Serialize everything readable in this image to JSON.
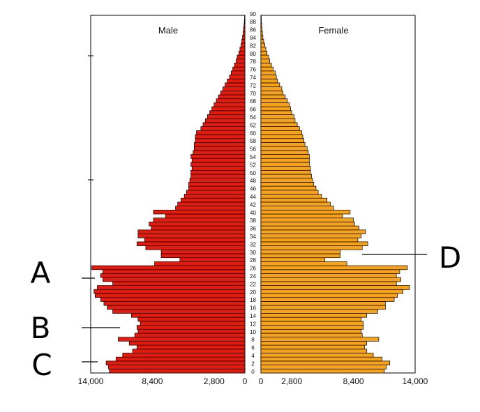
{
  "chart_data": {
    "type": "bar",
    "title": "",
    "headers": {
      "male": "Male",
      "female": "Female"
    },
    "age_tick_labels": [
      "0",
      "2",
      "4",
      "6",
      "8",
      "10",
      "12",
      "14",
      "16",
      "18",
      "20",
      "22",
      "24",
      "26",
      "28",
      "30",
      "32",
      "34",
      "36",
      "38",
      "40",
      "42",
      "44",
      "46",
      "48",
      "50",
      "52",
      "54",
      "56",
      "58",
      "60",
      "62",
      "64",
      "66",
      "68",
      "70",
      "72",
      "74",
      "76",
      "78",
      "80",
      "82",
      "84",
      "86",
      "88",
      "90"
    ],
    "male_axis_labels": [
      "14,000",
      "8,400",
      "2,800",
      "0"
    ],
    "female_axis_labels": [
      "0",
      "2,800",
      "8,400",
      "14,000"
    ],
    "axis_max": 14000,
    "ages": [
      0,
      1,
      2,
      3,
      4,
      5,
      6,
      7,
      8,
      9,
      10,
      11,
      12,
      13,
      14,
      15,
      16,
      17,
      18,
      19,
      20,
      21,
      22,
      23,
      24,
      25,
      26,
      27,
      28,
      29,
      30,
      31,
      32,
      33,
      34,
      35,
      36,
      37,
      38,
      39,
      40,
      41,
      42,
      43,
      44,
      45,
      46,
      47,
      48,
      49,
      50,
      51,
      52,
      53,
      54,
      55,
      56,
      57,
      58,
      59,
      60,
      61,
      62,
      63,
      64,
      65,
      66,
      67,
      68,
      69,
      70,
      71,
      72,
      73,
      74,
      75,
      76,
      77,
      78,
      79,
      80,
      81,
      82,
      83,
      84,
      85,
      86,
      87,
      88,
      89
    ],
    "series": [
      {
        "name": "Male",
        "color": "#e31a0e",
        "values": [
          12300,
          12400,
          12600,
          11700,
          11100,
          10200,
          9800,
          10500,
          11500,
          10000,
          9700,
          9800,
          9500,
          9700,
          10300,
          12000,
          12500,
          12800,
          13100,
          13600,
          13700,
          13400,
          12000,
          12900,
          13100,
          12900,
          13900,
          8200,
          5900,
          7600,
          7600,
          9000,
          9800,
          9100,
          9700,
          9700,
          8500,
          8700,
          8300,
          7200,
          8300,
          6300,
          6100,
          5800,
          5500,
          5300,
          5100,
          5100,
          5000,
          4900,
          4900,
          4800,
          4900,
          4800,
          4900,
          4700,
          4600,
          4600,
          4500,
          4500,
          4400,
          4000,
          3800,
          3600,
          3400,
          3200,
          3000,
          2800,
          2600,
          2400,
          2200,
          2000,
          1800,
          1600,
          1400,
          1250,
          1100,
          950,
          800,
          700,
          550,
          450,
          350,
          280,
          220,
          160,
          120,
          80,
          50,
          30
        ]
      },
      {
        "name": "Female",
        "color": "#f7a21b",
        "values": [
          11200,
          11400,
          11700,
          11000,
          10200,
          9600,
          9400,
          9600,
          10700,
          9200,
          9100,
          9300,
          9300,
          9100,
          9600,
          10600,
          11300,
          11300,
          12100,
          12400,
          12900,
          13500,
          12300,
          12700,
          12300,
          12600,
          13300,
          7800,
          5800,
          7200,
          7200,
          9200,
          9700,
          8800,
          9100,
          9500,
          8900,
          8500,
          8400,
          7400,
          8100,
          6600,
          6300,
          6000,
          5500,
          5200,
          5000,
          4800,
          4700,
          4600,
          4500,
          4500,
          4400,
          4400,
          4400,
          4300,
          4200,
          4000,
          3900,
          3800,
          3700,
          3500,
          3300,
          3100,
          3000,
          2800,
          2700,
          2600,
          2400,
          2200,
          2000,
          1900,
          1700,
          1500,
          1400,
          1300,
          1100,
          950,
          800,
          700,
          550,
          450,
          350,
          250,
          180,
          140,
          100,
          70,
          40,
          20
        ]
      }
    ]
  },
  "annotations": [
    "A",
    "B",
    "C",
    "D"
  ]
}
